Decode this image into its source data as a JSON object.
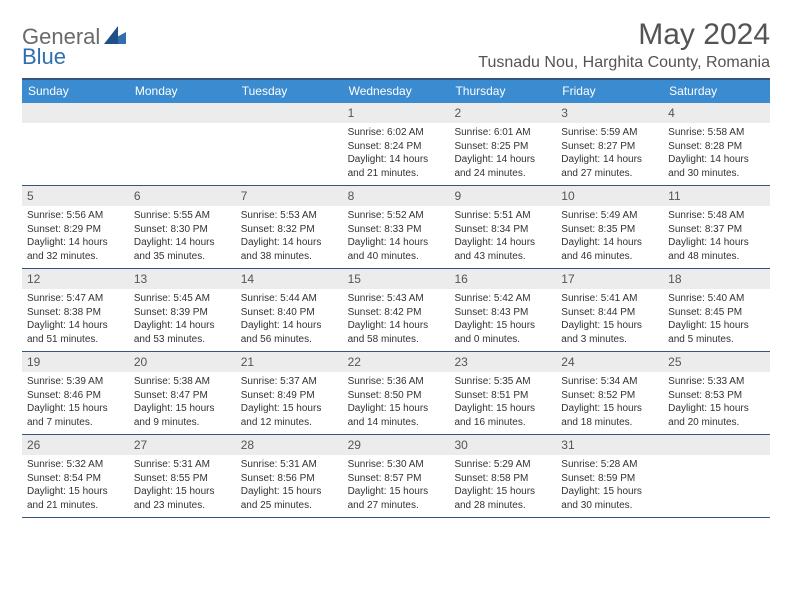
{
  "brand": {
    "part1": "General",
    "part2": "Blue"
  },
  "title": "May 2024",
  "location": "Tusnadu Nou, Harghita County, Romania",
  "colors": {
    "header_bar": "#3b8bd0",
    "border": "#38547a",
    "daynum_bg": "#ececec",
    "text_muted": "#545454"
  },
  "dow": [
    "Sunday",
    "Monday",
    "Tuesday",
    "Wednesday",
    "Thursday",
    "Friday",
    "Saturday"
  ],
  "weeks": [
    [
      null,
      null,
      null,
      {
        "n": "1",
        "sr": "6:02 AM",
        "ss": "8:24 PM",
        "dl1": "Daylight: 14 hours",
        "dl2": "and 21 minutes."
      },
      {
        "n": "2",
        "sr": "6:01 AM",
        "ss": "8:25 PM",
        "dl1": "Daylight: 14 hours",
        "dl2": "and 24 minutes."
      },
      {
        "n": "3",
        "sr": "5:59 AM",
        "ss": "8:27 PM",
        "dl1": "Daylight: 14 hours",
        "dl2": "and 27 minutes."
      },
      {
        "n": "4",
        "sr": "5:58 AM",
        "ss": "8:28 PM",
        "dl1": "Daylight: 14 hours",
        "dl2": "and 30 minutes."
      }
    ],
    [
      {
        "n": "5",
        "sr": "5:56 AM",
        "ss": "8:29 PM",
        "dl1": "Daylight: 14 hours",
        "dl2": "and 32 minutes."
      },
      {
        "n": "6",
        "sr": "5:55 AM",
        "ss": "8:30 PM",
        "dl1": "Daylight: 14 hours",
        "dl2": "and 35 minutes."
      },
      {
        "n": "7",
        "sr": "5:53 AM",
        "ss": "8:32 PM",
        "dl1": "Daylight: 14 hours",
        "dl2": "and 38 minutes."
      },
      {
        "n": "8",
        "sr": "5:52 AM",
        "ss": "8:33 PM",
        "dl1": "Daylight: 14 hours",
        "dl2": "and 40 minutes."
      },
      {
        "n": "9",
        "sr": "5:51 AM",
        "ss": "8:34 PM",
        "dl1": "Daylight: 14 hours",
        "dl2": "and 43 minutes."
      },
      {
        "n": "10",
        "sr": "5:49 AM",
        "ss": "8:35 PM",
        "dl1": "Daylight: 14 hours",
        "dl2": "and 46 minutes."
      },
      {
        "n": "11",
        "sr": "5:48 AM",
        "ss": "8:37 PM",
        "dl1": "Daylight: 14 hours",
        "dl2": "and 48 minutes."
      }
    ],
    [
      {
        "n": "12",
        "sr": "5:47 AM",
        "ss": "8:38 PM",
        "dl1": "Daylight: 14 hours",
        "dl2": "and 51 minutes."
      },
      {
        "n": "13",
        "sr": "5:45 AM",
        "ss": "8:39 PM",
        "dl1": "Daylight: 14 hours",
        "dl2": "and 53 minutes."
      },
      {
        "n": "14",
        "sr": "5:44 AM",
        "ss": "8:40 PM",
        "dl1": "Daylight: 14 hours",
        "dl2": "and 56 minutes."
      },
      {
        "n": "15",
        "sr": "5:43 AM",
        "ss": "8:42 PM",
        "dl1": "Daylight: 14 hours",
        "dl2": "and 58 minutes."
      },
      {
        "n": "16",
        "sr": "5:42 AM",
        "ss": "8:43 PM",
        "dl1": "Daylight: 15 hours",
        "dl2": "and 0 minutes."
      },
      {
        "n": "17",
        "sr": "5:41 AM",
        "ss": "8:44 PM",
        "dl1": "Daylight: 15 hours",
        "dl2": "and 3 minutes."
      },
      {
        "n": "18",
        "sr": "5:40 AM",
        "ss": "8:45 PM",
        "dl1": "Daylight: 15 hours",
        "dl2": "and 5 minutes."
      }
    ],
    [
      {
        "n": "19",
        "sr": "5:39 AM",
        "ss": "8:46 PM",
        "dl1": "Daylight: 15 hours",
        "dl2": "and 7 minutes."
      },
      {
        "n": "20",
        "sr": "5:38 AM",
        "ss": "8:47 PM",
        "dl1": "Daylight: 15 hours",
        "dl2": "and 9 minutes."
      },
      {
        "n": "21",
        "sr": "5:37 AM",
        "ss": "8:49 PM",
        "dl1": "Daylight: 15 hours",
        "dl2": "and 12 minutes."
      },
      {
        "n": "22",
        "sr": "5:36 AM",
        "ss": "8:50 PM",
        "dl1": "Daylight: 15 hours",
        "dl2": "and 14 minutes."
      },
      {
        "n": "23",
        "sr": "5:35 AM",
        "ss": "8:51 PM",
        "dl1": "Daylight: 15 hours",
        "dl2": "and 16 minutes."
      },
      {
        "n": "24",
        "sr": "5:34 AM",
        "ss": "8:52 PM",
        "dl1": "Daylight: 15 hours",
        "dl2": "and 18 minutes."
      },
      {
        "n": "25",
        "sr": "5:33 AM",
        "ss": "8:53 PM",
        "dl1": "Daylight: 15 hours",
        "dl2": "and 20 minutes."
      }
    ],
    [
      {
        "n": "26",
        "sr": "5:32 AM",
        "ss": "8:54 PM",
        "dl1": "Daylight: 15 hours",
        "dl2": "and 21 minutes."
      },
      {
        "n": "27",
        "sr": "5:31 AM",
        "ss": "8:55 PM",
        "dl1": "Daylight: 15 hours",
        "dl2": "and 23 minutes."
      },
      {
        "n": "28",
        "sr": "5:31 AM",
        "ss": "8:56 PM",
        "dl1": "Daylight: 15 hours",
        "dl2": "and 25 minutes."
      },
      {
        "n": "29",
        "sr": "5:30 AM",
        "ss": "8:57 PM",
        "dl1": "Daylight: 15 hours",
        "dl2": "and 27 minutes."
      },
      {
        "n": "30",
        "sr": "5:29 AM",
        "ss": "8:58 PM",
        "dl1": "Daylight: 15 hours",
        "dl2": "and 28 minutes."
      },
      {
        "n": "31",
        "sr": "5:28 AM",
        "ss": "8:59 PM",
        "dl1": "Daylight: 15 hours",
        "dl2": "and 30 minutes."
      },
      null
    ]
  ],
  "labels": {
    "sunrise": "Sunrise: ",
    "sunset": "Sunset: "
  }
}
